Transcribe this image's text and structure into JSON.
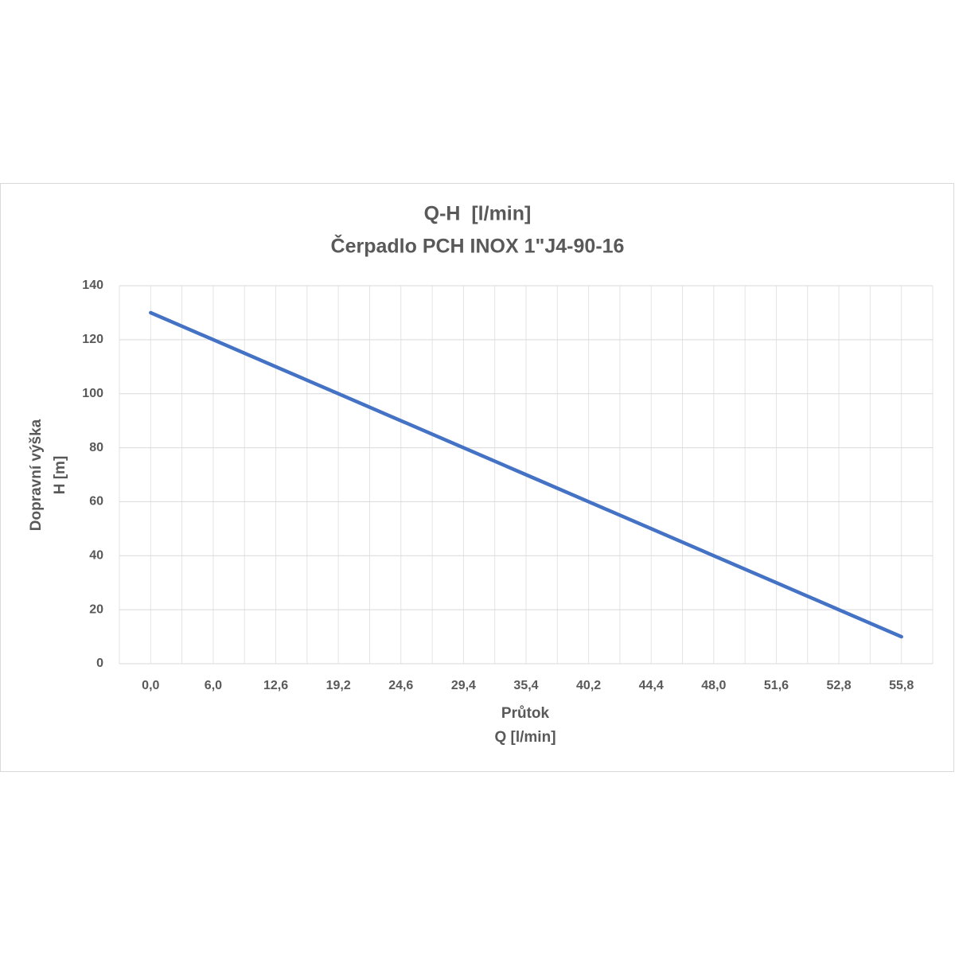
{
  "chart_data": {
    "type": "line",
    "title": [
      "Q-H  [l/min]",
      "Čerpadlo PCH INOX 1\"J4-90-16"
    ],
    "x_label": [
      "Průtok",
      "Q [l/min]"
    ],
    "y_label": [
      "Dopravní výška",
      "H [m]"
    ],
    "categories": [
      "0,0",
      "6,0",
      "12,6",
      "19,2",
      "24,6",
      "29,4",
      "35,4",
      "40,2",
      "44,4",
      "48,0",
      "51,6",
      "52,8",
      "55,8"
    ],
    "series": [
      {
        "name": "Q-H",
        "color": "#4472c4",
        "values": [
          130,
          120,
          110,
          100,
          90,
          80,
          70,
          60,
          50,
          40,
          30,
          20,
          10
        ]
      }
    ],
    "ylim": [
      0,
      140
    ],
    "yticks": [
      0,
      20,
      40,
      60,
      80,
      100,
      120,
      140
    ],
    "grid": true
  }
}
